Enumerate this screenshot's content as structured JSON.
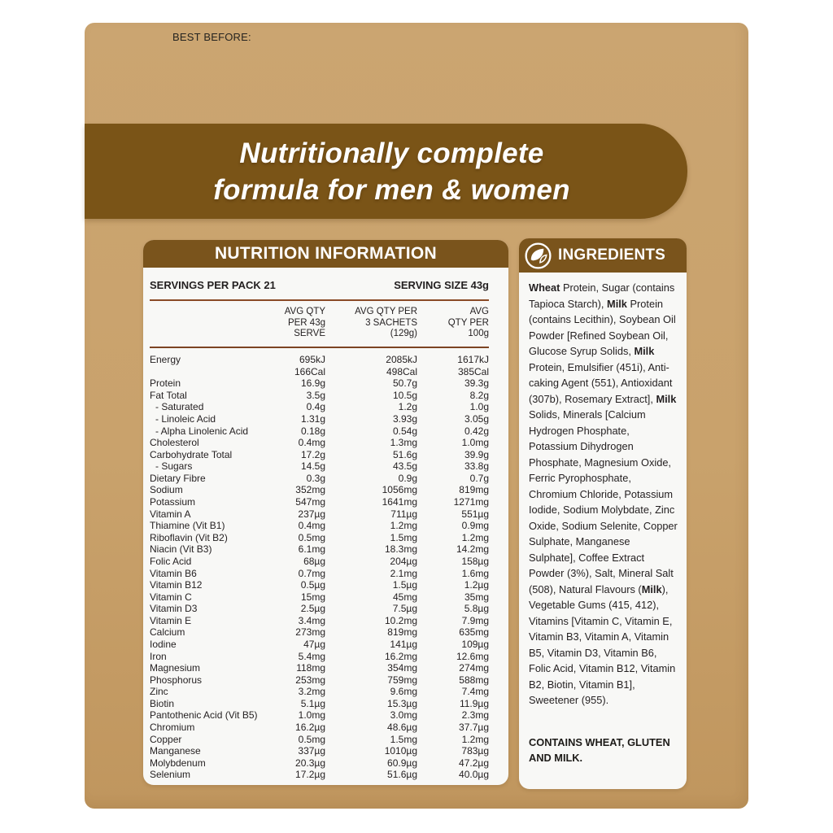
{
  "page": {
    "best_before_label": "BEST BEFORE:",
    "banner": {
      "line1": "Nutritionally complete",
      "line2": "formula for men & women"
    },
    "colors": {
      "brown": "#7a541c",
      "tan": "#c9a26c",
      "rule_brown": "#8a4a26",
      "panel_white": "#f8f8f6",
      "text_dark": "#231f20"
    }
  },
  "nutrition": {
    "title": "NUTRITION INFORMATION",
    "servings_per_pack": "SERVINGS PER PACK 21",
    "serving_size": "SERVING SIZE 43g",
    "column_headers": [
      [
        "AVG QTY",
        "PER 43g",
        "SERVE"
      ],
      [
        "AVG QTY PER",
        "3 SACHETS",
        "(129g)"
      ],
      [
        "AVG",
        "QTY PER",
        "100g"
      ]
    ],
    "rows": [
      {
        "label": "Energy",
        "values": [
          "695kJ",
          "2085kJ",
          "1617kJ"
        ]
      },
      {
        "label": "",
        "values": [
          "166Cal",
          "498Cal",
          "385Cal"
        ]
      },
      {
        "label": "Protein",
        "values": [
          "16.9g",
          "50.7g",
          "39.3g"
        ]
      },
      {
        "label": "Fat Total",
        "values": [
          "3.5g",
          "10.5g",
          "8.2g"
        ]
      },
      {
        "label": "- Saturated",
        "sub": true,
        "values": [
          "0.4g",
          "1.2g",
          "1.0g"
        ]
      },
      {
        "label": "- Linoleic Acid",
        "sub": true,
        "values": [
          "1.31g",
          "3.93g",
          "3.05g"
        ]
      },
      {
        "label": "- Alpha Linolenic Acid",
        "sub": true,
        "values": [
          "0.18g",
          "0.54g",
          "0.42g"
        ]
      },
      {
        "label": "Cholesterol",
        "values": [
          "0.4mg",
          "1.3mg",
          "1.0mg"
        ]
      },
      {
        "label": "Carbohydrate Total",
        "values": [
          "17.2g",
          "51.6g",
          "39.9g"
        ]
      },
      {
        "label": "- Sugars",
        "sub": true,
        "values": [
          "14.5g",
          "43.5g",
          "33.8g"
        ]
      },
      {
        "label": "Dietary Fibre",
        "values": [
          "0.3g",
          "0.9g",
          "0.7g"
        ]
      },
      {
        "label": "Sodium",
        "values": [
          "352mg",
          "1056mg",
          "819mg"
        ]
      },
      {
        "label": "Potassium",
        "values": [
          "547mg",
          "1641mg",
          "1271mg"
        ]
      },
      {
        "label": "Vitamin A",
        "values": [
          "237µg",
          "711µg",
          "551µg"
        ]
      },
      {
        "label": "Thiamine (Vit B1)",
        "values": [
          "0.4mg",
          "1.2mg",
          "0.9mg"
        ]
      },
      {
        "label": "Riboflavin (Vit B2)",
        "values": [
          "0.5mg",
          "1.5mg",
          "1.2mg"
        ]
      },
      {
        "label": "Niacin (Vit B3)",
        "values": [
          "6.1mg",
          "18.3mg",
          "14.2mg"
        ]
      },
      {
        "label": "Folic Acid",
        "values": [
          "68µg",
          "204µg",
          "158µg"
        ]
      },
      {
        "label": "Vitamin B6",
        "values": [
          "0.7mg",
          "2.1mg",
          "1.6mg"
        ]
      },
      {
        "label": "Vitamin B12",
        "values": [
          "0.5µg",
          "1.5µg",
          "1.2µg"
        ]
      },
      {
        "label": "Vitamin C",
        "values": [
          "15mg",
          "45mg",
          "35mg"
        ]
      },
      {
        "label": "Vitamin D3",
        "values": [
          "2.5µg",
          "7.5µg",
          "5.8µg"
        ]
      },
      {
        "label": "Vitamin E",
        "values": [
          "3.4mg",
          "10.2mg",
          "7.9mg"
        ]
      },
      {
        "label": "Calcium",
        "values": [
          "273mg",
          "819mg",
          "635mg"
        ]
      },
      {
        "label": "Iodine",
        "values": [
          "47µg",
          "141µg",
          "109µg"
        ]
      },
      {
        "label": "Iron",
        "values": [
          "5.4mg",
          "16.2mg",
          "12.6mg"
        ]
      },
      {
        "label": "Magnesium",
        "values": [
          "118mg",
          "354mg",
          "274mg"
        ]
      },
      {
        "label": "Phosphorus",
        "values": [
          "253mg",
          "759mg",
          "588mg"
        ]
      },
      {
        "label": "Zinc",
        "values": [
          "3.2mg",
          "9.6mg",
          "7.4mg"
        ]
      },
      {
        "label": "Biotin",
        "values": [
          "5.1µg",
          "15.3µg",
          "11.9µg"
        ]
      },
      {
        "label": "Pantothenic Acid (Vit B5)",
        "values": [
          "1.0mg",
          "3.0mg",
          "2.3mg"
        ]
      },
      {
        "label": "Chromium",
        "values": [
          "16.2µg",
          "48.6µg",
          "37.7µg"
        ]
      },
      {
        "label": "Copper",
        "values": [
          "0.5mg",
          "1.5mg",
          "1.2mg"
        ]
      },
      {
        "label": "Manganese",
        "values": [
          "337µg",
          "1010µg",
          "783µg"
        ]
      },
      {
        "label": "Molybdenum",
        "values": [
          "20.3µg",
          "60.9µg",
          "47.2µg"
        ]
      },
      {
        "label": "Selenium",
        "values": [
          "17.2µg",
          "51.6µg",
          "40.0µg"
        ]
      }
    ]
  },
  "ingredients": {
    "title": "INGREDIENTS",
    "icon": "leaf-icon",
    "segments": [
      {
        "text": "Wheat",
        "bold": true
      },
      {
        "text": " Protein, Sugar (contains Tapioca Starch), ",
        "bold": false
      },
      {
        "text": "Milk",
        "bold": true
      },
      {
        "text": " Protein (contains Lecithin), Soybean Oil Powder [Refined Soybean Oil, Glucose Syrup Solids, ",
        "bold": false
      },
      {
        "text": "Milk",
        "bold": true
      },
      {
        "text": " Protein, Emulsifier (451i), Anti-caking Agent (551), Antioxidant (307b), Rosemary Extract], ",
        "bold": false
      },
      {
        "text": "Milk",
        "bold": true
      },
      {
        "text": " Solids, Minerals [Calcium Hydrogen Phosphate, Potassium Dihydrogen Phosphate, Magnesium Oxide, Ferric Pyrophosphate, Chromium Chloride, Potassium Iodide, Sodium Molybdate, Zinc Oxide, Sodium Selenite, Copper Sulphate, Manganese Sulphate], Coffee Extract Powder (3%), Salt, Mineral Salt (508), Natural Flavours (",
        "bold": false
      },
      {
        "text": "Milk",
        "bold": true
      },
      {
        "text": "), Vegetable Gums (415, 412), Vitamins [Vitamin C, Vitamin E, Vitamin B3, Vitamin A, Vitamin B5, Vitamin D3, Vitamin B6, Folic Acid, Vitamin B12, Vitamin B2, Biotin, Vitamin B1], Sweetener (955).",
        "bold": false
      }
    ],
    "contains": "CONTAINS WHEAT, GLUTEN AND MILK."
  }
}
